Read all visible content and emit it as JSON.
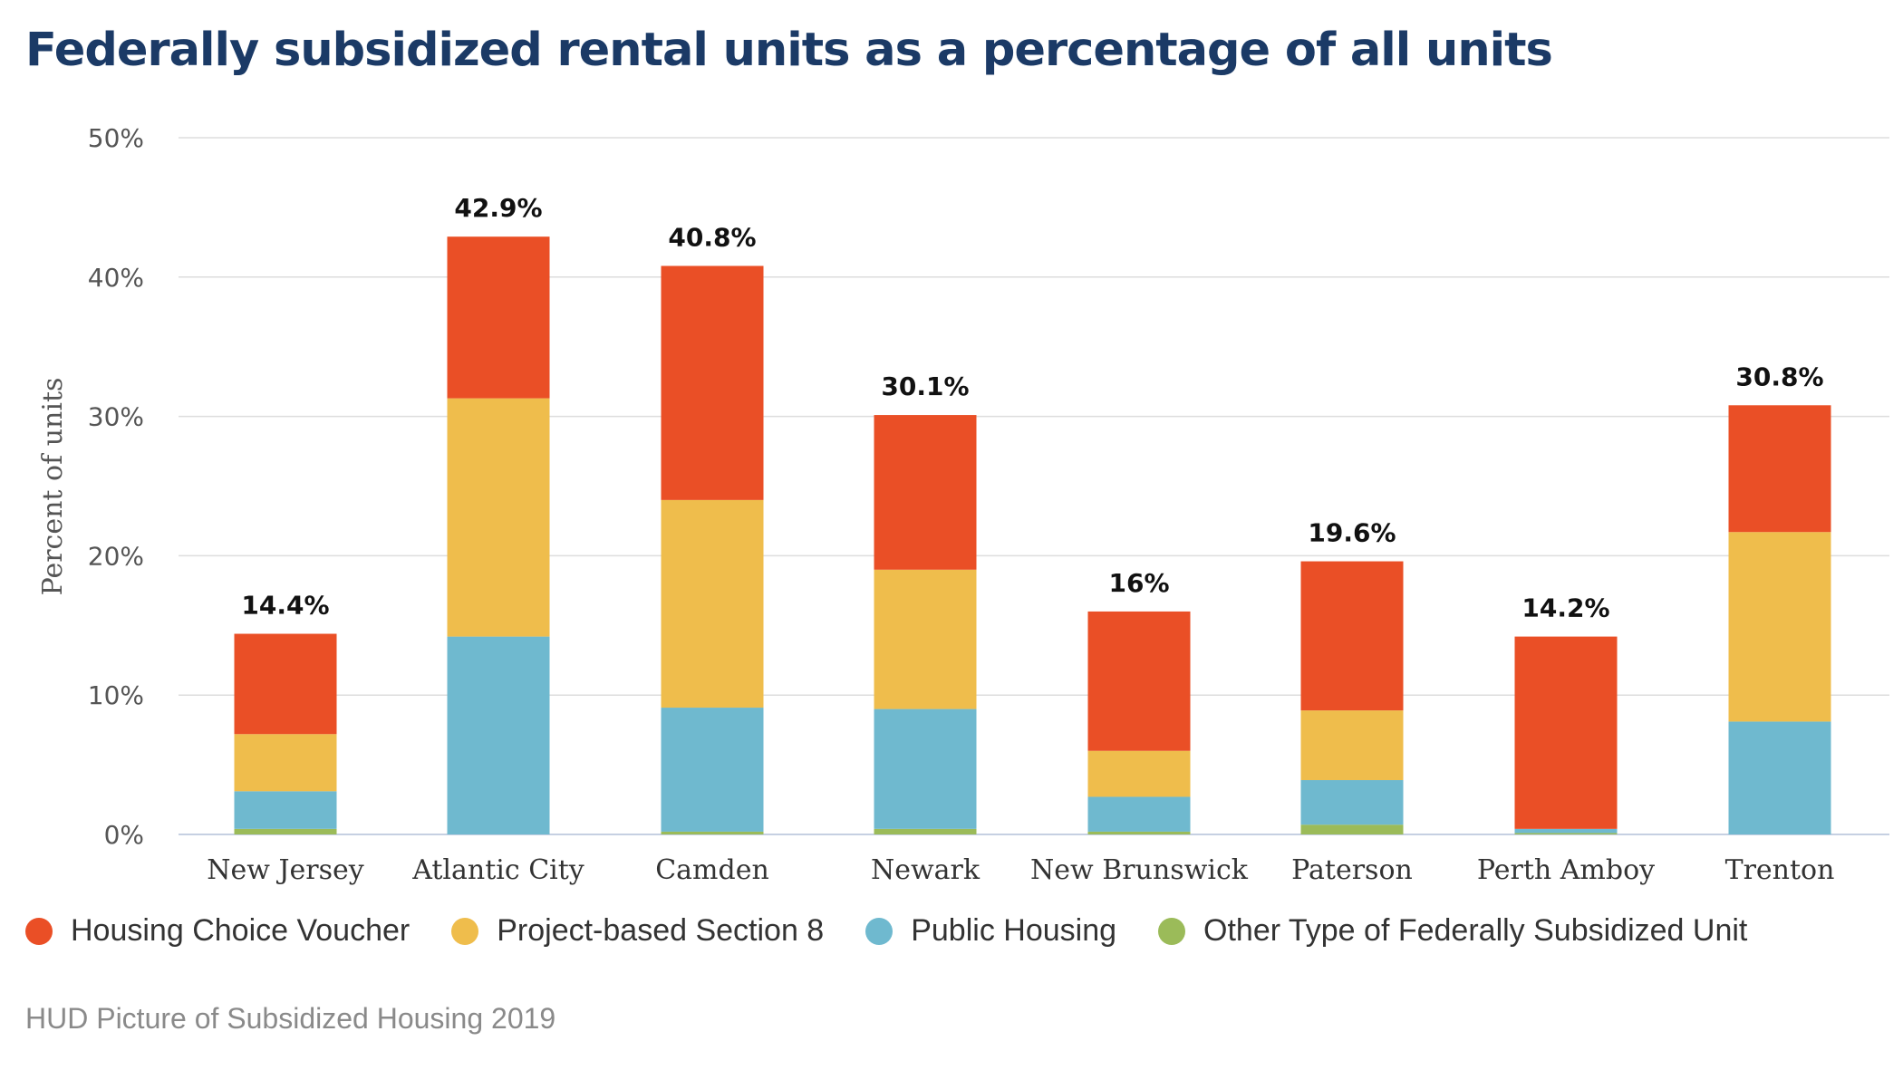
{
  "chart_data": {
    "type": "bar",
    "stacked": true,
    "title": "Federally subsidized rental units as a percentage of all units",
    "ylabel": "Percent of units",
    "xlabel": "",
    "ylim": [
      0,
      50
    ],
    "yticks": [
      0,
      10,
      20,
      30,
      40,
      50
    ],
    "ytick_labels": [
      "0%",
      "10%",
      "20%",
      "30%",
      "40%",
      "50%"
    ],
    "grid": true,
    "legend_position": "bottom",
    "categories": [
      "New Jersey",
      "Atlantic City",
      "Camden",
      "Newark",
      "New Brunswick",
      "Paterson",
      "Perth Amboy",
      "Trenton"
    ],
    "totals": [
      14.4,
      42.9,
      40.8,
      30.1,
      16,
      19.6,
      14.2,
      30.8
    ],
    "total_labels": [
      "14.4%",
      "42.9%",
      "40.8%",
      "30.1%",
      "16%",
      "19.6%",
      "14.2%",
      "30.8%"
    ],
    "series": [
      {
        "name": "Other Type of Federally Subsidized Unit",
        "color": "#9bbb59",
        "values": [
          0.4,
          0.0,
          0.2,
          0.4,
          0.2,
          0.7,
          0.1,
          0.0
        ]
      },
      {
        "name": "Public Housing",
        "color": "#6fb9cf",
        "values": [
          2.7,
          14.2,
          8.9,
          8.6,
          2.5,
          3.2,
          0.3,
          8.1
        ]
      },
      {
        "name": "Project-based Section 8",
        "color": "#efbd4c",
        "values": [
          4.1,
          17.1,
          14.9,
          10.0,
          3.3,
          5.0,
          0.0,
          13.6
        ]
      },
      {
        "name": "Housing Choice Voucher",
        "color": "#ea4f26",
        "values": [
          7.2,
          11.6,
          16.8,
          11.1,
          10.0,
          10.7,
          13.8,
          9.1
        ]
      }
    ],
    "legend_order": [
      "Housing Choice Voucher",
      "Project-based Section 8",
      "Public Housing",
      "Other Type of Federally Subsidized Unit"
    ]
  },
  "colors": {
    "title": "#1b3a66",
    "grid": "#dddddd",
    "axis": "#c6d0e2"
  },
  "source": "HUD Picture of Subsidized Housing 2019"
}
